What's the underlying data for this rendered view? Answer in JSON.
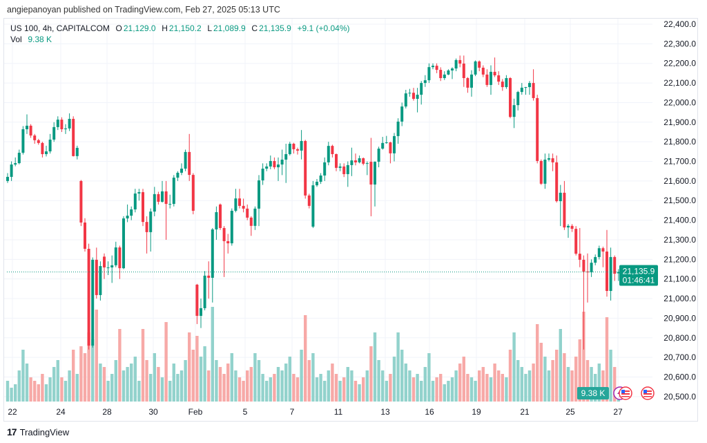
{
  "publisher_line": "angiepanoyan published on TradingView.com, Feb 27, 2025 05:13 UTC",
  "legend": {
    "symbol": "US 100, 4h, CAPITALCOM",
    "o_label": "O",
    "o": "21,129.0",
    "h_label": "H",
    "h": "21,150.2",
    "l_label": "L",
    "l": "21,089.9",
    "c_label": "C",
    "c": "21,135.9",
    "change": "+9.1 (+0.04%)",
    "vol_label": "Vol",
    "vol": "9.38 K"
  },
  "last_price": {
    "price": "21,135.9",
    "countdown": "01:46:41",
    "volume": "9.38 K"
  },
  "footer": {
    "brand": "TradingView"
  },
  "colors": {
    "up": "#089981",
    "down": "#f23645",
    "up_vol": "#92d2cc",
    "down_vol": "#f7a9a7"
  },
  "chart_data": {
    "type": "candlestick",
    "title": "US 100, 4h, CAPITALCOM",
    "ylim": [
      20500,
      22400
    ],
    "y_ticks": [
      "22,400.0",
      "22,300.0",
      "22,200.0",
      "22,100.0",
      "22,000.0",
      "21,900.0",
      "21,800.0",
      "21,700.0",
      "21,600.0",
      "21,500.0",
      "21,400.0",
      "21,300.0",
      "21,200.0",
      "21,100.0",
      "21,000.0",
      "20,900.0",
      "20,800.0",
      "20,700.0",
      "20,600.0",
      "20,500.0"
    ],
    "y_tick_values": [
      22400,
      22300,
      22200,
      22100,
      22000,
      21900,
      21800,
      21700,
      21600,
      21500,
      21400,
      21300,
      21200,
      21100,
      21000,
      20900,
      20800,
      20700,
      20600,
      20500
    ],
    "x_ticks": [
      "22",
      "24",
      "28",
      "30",
      "Feb",
      "5",
      "7",
      "11",
      "13",
      "16",
      "19",
      "21",
      "25",
      "27"
    ],
    "grid": true,
    "ohlc": [
      [
        21600,
        21640,
        21590,
        21621
      ],
      [
        21621,
        21700,
        21600,
        21684
      ],
      [
        21684,
        21720,
        21675,
        21691
      ],
      [
        21691,
        21760,
        21685,
        21744
      ],
      [
        21744,
        21880,
        21735,
        21864
      ],
      [
        21864,
        21940,
        21840,
        21882
      ],
      [
        21882,
        21890,
        21820,
        21832
      ],
      [
        21832,
        21840,
        21790,
        21808
      ],
      [
        21808,
        21815,
        21785,
        21794
      ],
      [
        21794,
        21800,
        21720,
        21737
      ],
      [
        21737,
        21780,
        21725,
        21751
      ],
      [
        21751,
        21840,
        21740,
        21811
      ],
      [
        21811,
        21900,
        21800,
        21875
      ],
      [
        21875,
        21930,
        21860,
        21913
      ],
      [
        21913,
        21925,
        21850,
        21864
      ],
      [
        21864,
        21890,
        21840,
        21868
      ],
      [
        21868,
        21945,
        21855,
        21917
      ],
      [
        21917,
        21930,
        21725,
        21727
      ],
      [
        21727,
        21780,
        21710,
        21769
      ],
      [
        21600,
        21605,
        21370,
        21388
      ],
      [
        21388,
        21410,
        21240,
        21254
      ],
      [
        21254,
        21280,
        20740,
        20760
      ],
      [
        20760,
        21210,
        20750,
        21198
      ],
      [
        21198,
        21260,
        21000,
        21018
      ],
      [
        21018,
        21190,
        20990,
        21166
      ],
      [
        21214,
        21230,
        21100,
        21159
      ],
      [
        21159,
        21190,
        21120,
        21159
      ],
      [
        21159,
        21220,
        21080,
        21170
      ],
      [
        21170,
        21290,
        21160,
        21261
      ],
      [
        21261,
        21270,
        21100,
        21155
      ],
      [
        21155,
        21420,
        21150,
        21409
      ],
      [
        21409,
        21480,
        21390,
        21423
      ],
      [
        21423,
        21470,
        21400,
        21455
      ],
      [
        21455,
        21560,
        21440,
        21536
      ],
      [
        21536,
        21560,
        21500,
        21543
      ],
      [
        21543,
        21560,
        21370,
        21391
      ],
      [
        21391,
        21420,
        21230,
        21339
      ],
      [
        21339,
        21460,
        21240,
        21444
      ],
      [
        21444,
        21570,
        21420,
        21533
      ],
      [
        21533,
        21545,
        21480,
        21494
      ],
      [
        21494,
        21600,
        21490,
        21547
      ],
      [
        21547,
        21600,
        21300,
        21483
      ],
      [
        21483,
        21530,
        21460,
        21483
      ],
      [
        21483,
        21630,
        21470,
        21617
      ],
      [
        21617,
        21650,
        21600,
        21642
      ],
      [
        21642,
        21690,
        21630,
        21663
      ],
      [
        21663,
        21760,
        21650,
        21748
      ],
      [
        21748,
        21840,
        21600,
        21631
      ],
      [
        21631,
        21640,
        21430,
        21448
      ],
      [
        21071,
        21075,
        20870,
        20912
      ],
      [
        20912,
        21000,
        20850,
        20951
      ],
      [
        20951,
        21140,
        20940,
        21117
      ],
      [
        21117,
        21190,
        21000,
        21106
      ],
      [
        21106,
        21360,
        20980,
        21353
      ],
      [
        21353,
        21470,
        21300,
        21441
      ],
      [
        21480,
        21485,
        21350,
        21360
      ],
      [
        21360,
        21370,
        21110,
        21293
      ],
      [
        21293,
        21330,
        21230,
        21282
      ],
      [
        21282,
        21460,
        21270,
        21448
      ],
      [
        21448,
        21560,
        21440,
        21511
      ],
      [
        21511,
        21560,
        21460,
        21473
      ],
      [
        21473,
        21510,
        21440,
        21459
      ],
      [
        21459,
        21480,
        21400,
        21413
      ],
      [
        21413,
        21420,
        21320,
        21371
      ],
      [
        21371,
        21470,
        21350,
        21459
      ],
      [
        21459,
        21630,
        21370,
        21603
      ],
      [
        21603,
        21690,
        21580,
        21663
      ],
      [
        21663,
        21690,
        21650,
        21674
      ],
      [
        21674,
        21730,
        21660,
        21702
      ],
      [
        21702,
        21720,
        21660,
        21670
      ],
      [
        21670,
        21720,
        21600,
        21684
      ],
      [
        21684,
        21760,
        21630,
        21709
      ],
      [
        21709,
        21790,
        21590,
        21737
      ],
      [
        21737,
        21800,
        21730,
        21790
      ],
      [
        21790,
        21795,
        21740,
        21762
      ],
      [
        21762,
        21770,
        21735,
        21755
      ],
      [
        21755,
        21860,
        21710,
        21804
      ],
      [
        21804,
        21810,
        21510,
        21526
      ],
      [
        21526,
        21535,
        21460,
        21473
      ],
      [
        21367,
        21600,
        21360,
        21578
      ],
      [
        21578,
        21610,
        21570,
        21596
      ],
      [
        21596,
        21640,
        21585,
        21628
      ],
      [
        21628,
        21720,
        21600,
        21695
      ],
      [
        21695,
        21800,
        21680,
        21779
      ],
      [
        21779,
        21785,
        21720,
        21737
      ],
      [
        21737,
        21740,
        21650,
        21667
      ],
      [
        21667,
        21690,
        21650,
        21674
      ],
      [
        21674,
        21690,
        21620,
        21635
      ],
      [
        21635,
        21700,
        21570,
        21681
      ],
      [
        21681,
        21770,
        21625,
        21705
      ],
      [
        21705,
        21740,
        21680,
        21695
      ],
      [
        21695,
        21730,
        21690,
        21716
      ],
      [
        21716,
        21720,
        21680,
        21688
      ],
      [
        21688,
        21700,
        21630,
        21691
      ],
      [
        21698,
        21820,
        21420,
        21582
      ],
      [
        21582,
        21700,
        21470,
        21698
      ],
      [
        21698,
        21775,
        21670,
        21765
      ],
      [
        21765,
        21825,
        21760,
        21794
      ],
      [
        21794,
        21830,
        21790,
        21797
      ],
      [
        21797,
        21800,
        21690,
        21741
      ],
      [
        21741,
        21845,
        21700,
        21829
      ],
      [
        21829,
        21920,
        21790,
        21903
      ],
      [
        21903,
        22000,
        21880,
        21980
      ],
      [
        21980,
        22065,
        21970,
        22047
      ],
      [
        22047,
        22070,
        22030,
        22050
      ],
      [
        22050,
        22075,
        22010,
        22019
      ],
      [
        22019,
        22075,
        21950,
        22040
      ],
      [
        22040,
        22110,
        21990,
        22100
      ],
      [
        22100,
        22140,
        22080,
        22114
      ],
      [
        22114,
        22200,
        22100,
        22181
      ],
      [
        22181,
        22200,
        22170,
        22188
      ],
      [
        22188,
        22200,
        22150,
        22167
      ],
      [
        22167,
        22180,
        22110,
        22125
      ],
      [
        22125,
        22160,
        22115,
        22143
      ],
      [
        22143,
        22170,
        22140,
        22164
      ],
      [
        22164,
        22180,
        22120,
        22174
      ],
      [
        22174,
        22225,
        22160,
        22217
      ],
      [
        22217,
        22240,
        22180,
        22199
      ],
      [
        22199,
        22240,
        22080,
        22125
      ],
      [
        22125,
        22130,
        22050,
        22076
      ],
      [
        22076,
        22165,
        22030,
        22143
      ],
      [
        22143,
        22215,
        22135,
        22210
      ],
      [
        22210,
        22215,
        22160,
        22178
      ],
      [
        22178,
        22190,
        22130,
        22143
      ],
      [
        22143,
        22170,
        22080,
        22090
      ],
      [
        22090,
        22190,
        22040,
        22157
      ],
      [
        22157,
        22230,
        22130,
        22139
      ],
      [
        22139,
        22160,
        22090,
        22107
      ],
      [
        22107,
        22120,
        22060,
        22079
      ],
      [
        22079,
        22140,
        22070,
        22125
      ],
      [
        22125,
        22130,
        21920,
        21927
      ],
      [
        21927,
        22020,
        21870,
        21987
      ],
      [
        21987,
        22060,
        21960,
        22054
      ],
      [
        22054,
        22100,
        22040,
        22076
      ],
      [
        22076,
        22080,
        22040,
        22079
      ],
      [
        22079,
        22110,
        22040,
        22100
      ],
      [
        22100,
        22170,
        22010,
        22023
      ],
      [
        22023,
        22040,
        21690,
        21702
      ],
      [
        21702,
        21710,
        21580,
        21586
      ],
      [
        21586,
        21740,
        21560,
        21709
      ],
      [
        21709,
        21740,
        21700,
        21716
      ],
      [
        21716,
        21740,
        21650,
        21695
      ],
      [
        21695,
        21730,
        21490,
        21497
      ],
      [
        21497,
        21580,
        21370,
        21540
      ],
      [
        21540,
        21600,
        21350,
        21363
      ],
      [
        21363,
        21380,
        21310,
        21371
      ],
      [
        21371,
        21380,
        21340,
        21356
      ],
      [
        21356,
        21370,
        21220,
        21229
      ],
      [
        21229,
        21360,
        21160,
        21198
      ],
      [
        21198,
        21220,
        20740,
        21138
      ],
      [
        21138,
        21230,
        20980,
        21134
      ],
      [
        21134,
        21200,
        21110,
        21183
      ],
      [
        21183,
        21225,
        21170,
        21212
      ],
      [
        21212,
        21270,
        21200,
        21257
      ],
      [
        21257,
        21265,
        21160,
        21240
      ],
      [
        21240,
        21350,
        21010,
        21039
      ],
      [
        21039,
        21260,
        20990,
        21212
      ],
      [
        21212,
        21220,
        21090,
        21127
      ],
      [
        21129,
        21150.2,
        21089.9,
        21135.9
      ]
    ],
    "volume_k": [
      60,
      40,
      50,
      90,
      150,
      110,
      70,
      60,
      50,
      80,
      50,
      70,
      100,
      120,
      70,
      60,
      90,
      150,
      80,
      160,
      140,
      200,
      180,
      266,
      110,
      100,
      60,
      80,
      120,
      210,
      90,
      100,
      110,
      130,
      60,
      210,
      120,
      80,
      140,
      100,
      70,
      230,
      60,
      110,
      80,
      90,
      120,
      200,
      150,
      190,
      130,
      160,
      90,
      274,
      120,
      100,
      80,
      110,
      140,
      90,
      70,
      60,
      90,
      100,
      140,
      120,
      80,
      60,
      70,
      80,
      100,
      90,
      110,
      130,
      80,
      70,
      150,
      250,
      120,
      140,
      70,
      80,
      60,
      90,
      110,
      80,
      60,
      70,
      100,
      90,
      60,
      50,
      70,
      90,
      160,
      200,
      120,
      90,
      60,
      80,
      130,
      200,
      150,
      110,
      90,
      70,
      80,
      60,
      100,
      140,
      60,
      70,
      80,
      50,
      60,
      70,
      90,
      110,
      130,
      80,
      70,
      60,
      90,
      100,
      80,
      70,
      110,
      90,
      80,
      70,
      150,
      200,
      120,
      100,
      80,
      90,
      110,
      224,
      170,
      130,
      90,
      120,
      150,
      210,
      140,
      100,
      90,
      130,
      180,
      260,
      120,
      100,
      80,
      110,
      90,
      244,
      150,
      100,
      9.38
    ],
    "last_close": 21135.9
  }
}
